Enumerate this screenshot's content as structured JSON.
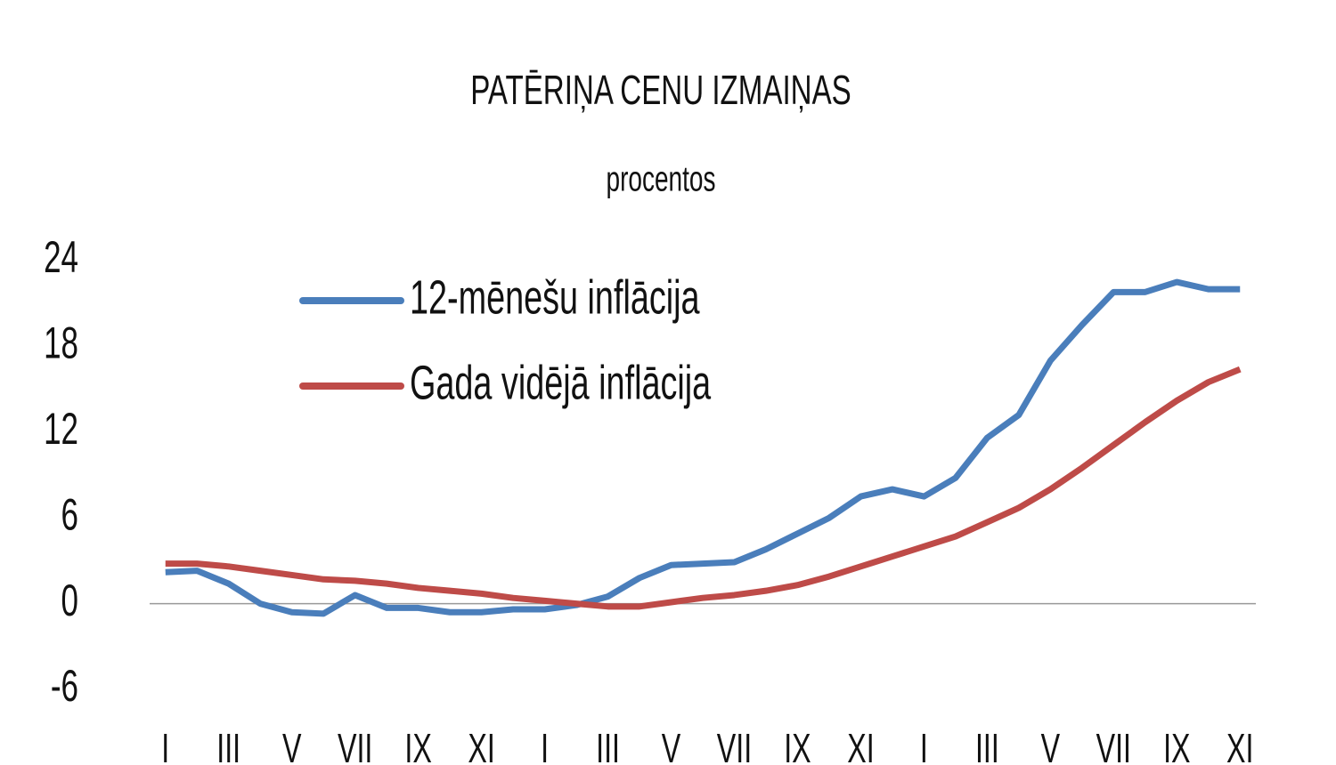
{
  "chart_data": {
    "type": "line",
    "title": "PATĒRIŅA CENU IZMAIŅAS",
    "subtitle": "procentos",
    "categories": [
      "I",
      null,
      "III",
      null,
      "V",
      null,
      "VII",
      null,
      "IX",
      null,
      "XI",
      null,
      "I",
      null,
      "III",
      null,
      "V",
      null,
      "VII",
      null,
      "IX",
      null,
      "XI",
      null,
      "I",
      null,
      "III",
      null,
      "V",
      null,
      "VII",
      null,
      "IX",
      null,
      "XI"
    ],
    "series": [
      {
        "name": "12-mēnešu inflācija",
        "color": "#4a7ebb",
        "values": [
          2.2,
          2.3,
          1.4,
          0.0,
          -0.6,
          -0.7,
          0.6,
          -0.3,
          -0.3,
          -0.6,
          -0.6,
          -0.4,
          -0.4,
          -0.1,
          0.5,
          1.8,
          2.7,
          2.8,
          2.9,
          3.8,
          4.9,
          6.0,
          7.5,
          8.0,
          7.5,
          8.8,
          11.6,
          13.2,
          17.0,
          19.5,
          21.8,
          21.8,
          22.5,
          22.0,
          22.0
        ]
      },
      {
        "name": "Gada vidējā inflācija",
        "color": "#be4b48",
        "values": [
          2.8,
          2.8,
          2.6,
          2.3,
          2.0,
          1.7,
          1.6,
          1.4,
          1.1,
          0.9,
          0.7,
          0.4,
          0.2,
          0.0,
          -0.2,
          -0.2,
          0.1,
          0.4,
          0.6,
          0.9,
          1.3,
          1.9,
          2.6,
          3.3,
          4.0,
          4.7,
          5.7,
          6.7,
          8.0,
          9.5,
          11.1,
          12.7,
          14.2,
          15.5,
          16.4
        ]
      }
    ],
    "ylim": [
      -6,
      24
    ],
    "yticks": [
      -6,
      0,
      6,
      12,
      18,
      24
    ],
    "grid": false,
    "legend": "top-left"
  }
}
